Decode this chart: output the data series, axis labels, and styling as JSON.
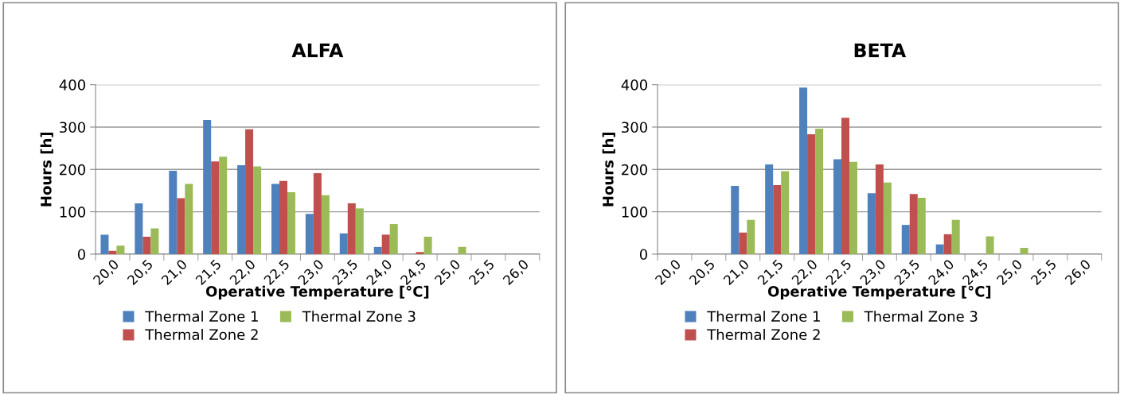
{
  "chart_data": [
    {
      "type": "bar",
      "title": "ALFA",
      "xlabel": "Operative Temperature [°C]",
      "ylabel": "Hours [h]",
      "categories": [
        "20,0",
        "20,5",
        "21,0",
        "21,5",
        "22,0",
        "22,5",
        "23,0",
        "23,5",
        "24,0",
        "24,5",
        "25,0",
        "25,5",
        "26,0"
      ],
      "series": [
        {
          "name": "Thermal Zone 1",
          "color": "#4f81bd",
          "values": [
            46,
            120,
            197,
            317,
            210,
            166,
            95,
            49,
            17,
            0,
            0,
            0,
            0
          ]
        },
        {
          "name": "Thermal Zone 2",
          "color": "#c0504d",
          "values": [
            8,
            41,
            132,
            219,
            295,
            173,
            191,
            120,
            46,
            5,
            0,
            0,
            0
          ]
        },
        {
          "name": "Thermal Zone 3",
          "color": "#9bbb59",
          "values": [
            20,
            61,
            166,
            230,
            207,
            146,
            139,
            108,
            71,
            41,
            17,
            0,
            0
          ]
        }
      ],
      "ylim": [
        0,
        400
      ],
      "yticks": [
        0,
        100,
        200,
        300,
        400
      ],
      "grid": "y",
      "legend": "bottom"
    },
    {
      "type": "bar",
      "title": "BETA",
      "xlabel": "Operative Temperature [°C]",
      "ylabel": "Hours [h]",
      "categories": [
        "20,0",
        "20,5",
        "21,0",
        "21,5",
        "22,0",
        "22,5",
        "23,0",
        "23,5",
        "24,0",
        "24,5",
        "25,0",
        "25,5",
        "26,0"
      ],
      "series": [
        {
          "name": "Thermal Zone 1",
          "color": "#4f81bd",
          "values": [
            0,
            0,
            161,
            212,
            393,
            224,
            144,
            69,
            23,
            0,
            0,
            0,
            0
          ]
        },
        {
          "name": "Thermal Zone 2",
          "color": "#c0504d",
          "values": [
            0,
            0,
            51,
            163,
            283,
            322,
            212,
            142,
            47,
            0,
            0,
            0,
            0
          ]
        },
        {
          "name": "Thermal Zone 3",
          "color": "#9bbb59",
          "values": [
            0,
            0,
            81,
            196,
            296,
            218,
            169,
            133,
            81,
            42,
            15,
            0,
            0
          ]
        }
      ],
      "ylim": [
        0,
        400
      ],
      "yticks": [
        0,
        100,
        200,
        300,
        400
      ],
      "grid": "y",
      "legend": "bottom"
    }
  ]
}
